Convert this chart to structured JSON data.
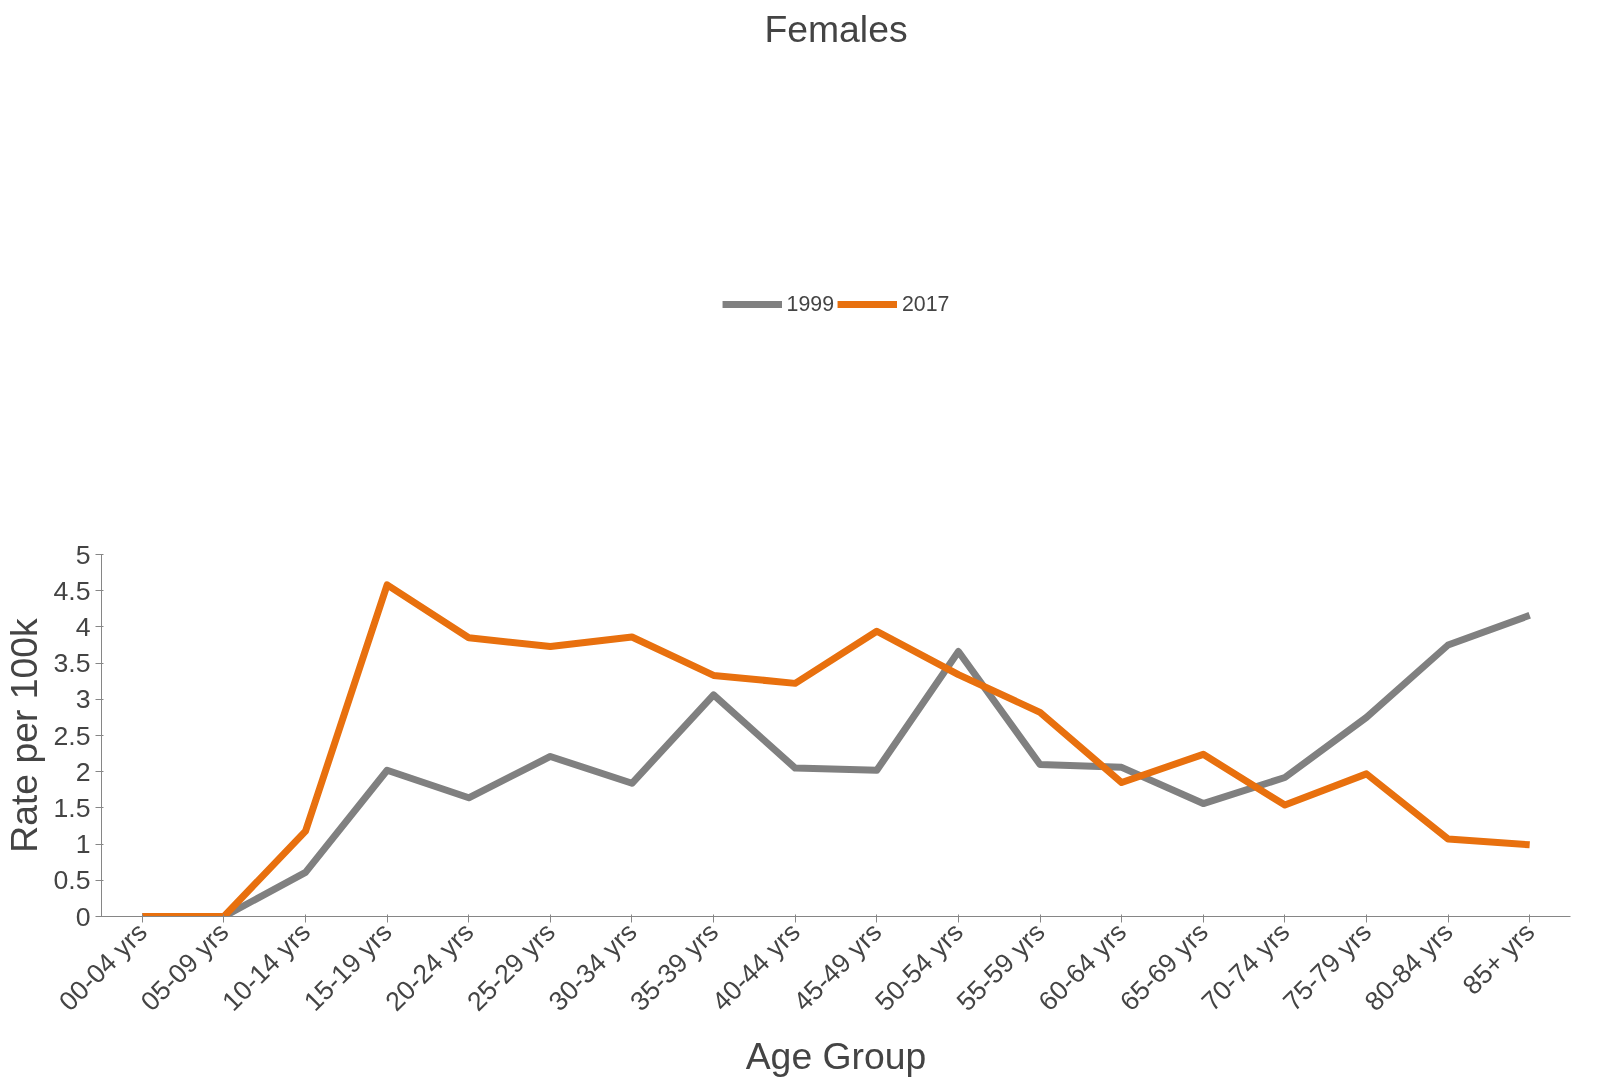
{
  "chart_data": {
    "type": "line",
    "title": "Females",
    "xlabel": "Age Group",
    "ylabel": "Rate per 100k",
    "categories": [
      "00-04 yrs",
      "05-09 yrs",
      "10-14 yrs",
      "15-19 yrs",
      "20-24 yrs",
      "25-29 yrs",
      "30-34 yrs",
      "35-39 yrs",
      "40-44 yrs",
      "45-49 yrs",
      "50-54 yrs",
      "55-59 yrs",
      "60-64 yrs",
      "65-69 yrs",
      "70-74 yrs",
      "75-79 yrs",
      "80-84 yrs",
      "85+ yrs"
    ],
    "series": [
      {
        "name": "1999",
        "color": "#808080",
        "values": [
          0,
          0,
          0.61,
          2.02,
          1.64,
          2.21,
          1.84,
          3.06,
          2.05,
          2.02,
          3.66,
          2.1,
          2.06,
          1.56,
          1.92,
          2.75,
          3.75,
          4.16
        ]
      },
      {
        "name": "2017",
        "color": "#e8700e",
        "values": [
          0,
          0,
          1.18,
          4.58,
          3.85,
          3.73,
          3.86,
          3.33,
          3.22,
          3.94,
          3.34,
          2.82,
          1.85,
          2.24,
          1.54,
          1.97,
          1.07,
          0.99
        ]
      }
    ],
    "ylim": [
      0,
      5
    ],
    "yticks": [
      0,
      0.5,
      1,
      1.5,
      2,
      2.5,
      3,
      3.5,
      4,
      4.5,
      5
    ],
    "grid": false,
    "legend": "top",
    "marker": "none",
    "line_style": "solid"
  }
}
